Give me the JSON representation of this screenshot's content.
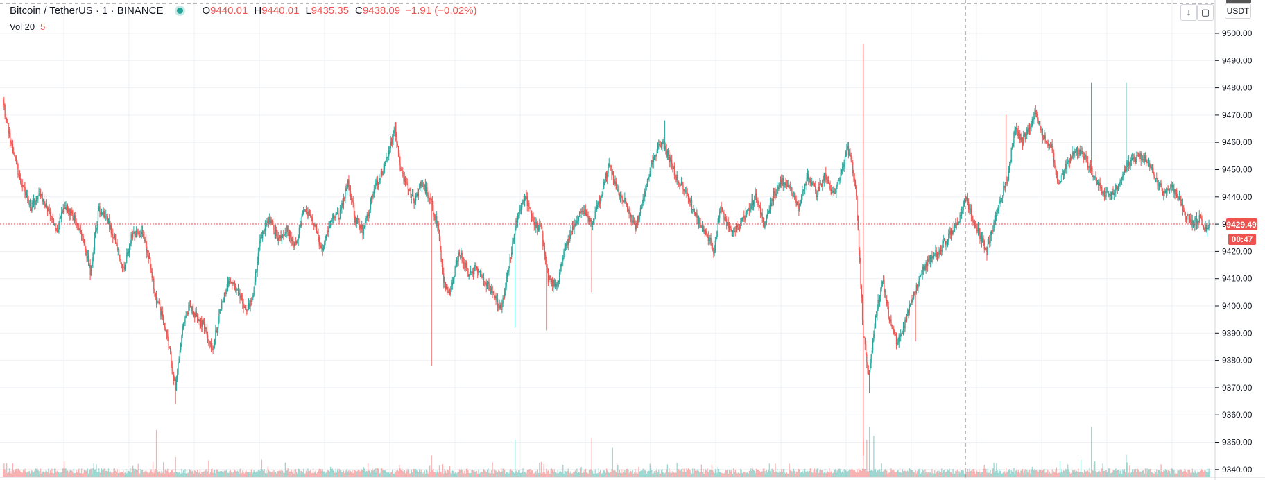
{
  "header": {
    "symbol": "Bitcoin / TetherUS · 1 · BINANCE",
    "open_key": "O",
    "open": "9440.01",
    "high_key": "H",
    "high": "9440.01",
    "low_key": "L",
    "low": "9435.35",
    "close_key": "C",
    "close": "9438.09",
    "change": "−1.91 (−0.02%)"
  },
  "volume_legend": {
    "label": "Vol 20",
    "value": "5"
  },
  "toolbar": {
    "download_icon": "download-arrow-icon",
    "fullscreen_icon": "fullscreen-icon",
    "currency": "USDT"
  },
  "price_tag": {
    "price": "9429.49",
    "countdown": "00:47"
  },
  "colors": {
    "up": "#26a69a",
    "down": "#ef5350",
    "grid": "#eef1f5",
    "axis": "#131722"
  },
  "chart_data": {
    "type": "candlestick",
    "ylim": [
      9336,
      9507
    ],
    "y_ticks": [
      9500,
      9490,
      9480,
      9470,
      9460,
      9450,
      9440,
      9430,
      9420,
      9410,
      9400,
      9390,
      9380,
      9370,
      9360,
      9350,
      9340
    ],
    "y_tick_labels": [
      "9500.00",
      "9490.00",
      "9480.00",
      "9470.00",
      "9460.00",
      "9450.00",
      "9440.00",
      "9430.00",
      "9420.00",
      "9410.00",
      "9400.00",
      "9390.00",
      "9380.00",
      "9370.00",
      "9360.00",
      "9350.00",
      "9340.00"
    ],
    "last_price": 9429.49,
    "grid": true,
    "volume_label": "Vol 20",
    "close_path_anchors": [
      [
        0,
        9474
      ],
      [
        10,
        9458
      ],
      [
        20,
        9446
      ],
      [
        32,
        9436
      ],
      [
        42,
        9442
      ],
      [
        55,
        9432
      ],
      [
        62,
        9428
      ],
      [
        70,
        9437
      ],
      [
        82,
        9432
      ],
      [
        92,
        9425
      ],
      [
        100,
        9412
      ],
      [
        110,
        9436
      ],
      [
        120,
        9431
      ],
      [
        128,
        9425
      ],
      [
        138,
        9413
      ],
      [
        148,
        9426
      ],
      [
        160,
        9427
      ],
      [
        168,
        9417
      ],
      [
        176,
        9402
      ],
      [
        184,
        9395
      ],
      [
        192,
        9382
      ],
      [
        198,
        9370
      ],
      [
        206,
        9392
      ],
      [
        214,
        9400
      ],
      [
        224,
        9395
      ],
      [
        232,
        9392
      ],
      [
        240,
        9383
      ],
      [
        250,
        9400
      ],
      [
        260,
        9410
      ],
      [
        270,
        9405
      ],
      [
        280,
        9398
      ],
      [
        286,
        9403
      ],
      [
        296,
        9425
      ],
      [
        306,
        9432
      ],
      [
        316,
        9424
      ],
      [
        326,
        9428
      ],
      [
        336,
        9422
      ],
      [
        346,
        9436
      ],
      [
        358,
        9430
      ],
      [
        366,
        9420
      ],
      [
        376,
        9432
      ],
      [
        386,
        9433
      ],
      [
        396,
        9446
      ],
      [
        404,
        9432
      ],
      [
        414,
        9427
      ],
      [
        426,
        9443
      ],
      [
        436,
        9450
      ],
      [
        446,
        9460
      ],
      [
        450,
        9466
      ],
      [
        456,
        9450
      ],
      [
        464,
        9444
      ],
      [
        472,
        9438
      ],
      [
        480,
        9445
      ],
      [
        490,
        9440
      ],
      [
        500,
        9428
      ],
      [
        506,
        9408
      ],
      [
        514,
        9405
      ],
      [
        524,
        9420
      ],
      [
        534,
        9412
      ],
      [
        544,
        9414
      ],
      [
        556,
        9408
      ],
      [
        566,
        9403
      ],
      [
        572,
        9398
      ],
      [
        580,
        9413
      ],
      [
        590,
        9432
      ],
      [
        600,
        9440
      ],
      [
        610,
        9430
      ],
      [
        618,
        9428
      ],
      [
        626,
        9410
      ],
      [
        636,
        9407
      ],
      [
        646,
        9422
      ],
      [
        656,
        9430
      ],
      [
        666,
        9435
      ],
      [
        676,
        9430
      ],
      [
        686,
        9440
      ],
      [
        696,
        9452
      ],
      [
        706,
        9442
      ],
      [
        716,
        9437
      ],
      [
        726,
        9428
      ],
      [
        736,
        9440
      ],
      [
        746,
        9454
      ],
      [
        756,
        9460
      ],
      [
        764,
        9455
      ],
      [
        772,
        9448
      ],
      [
        782,
        9443
      ],
      [
        792,
        9436
      ],
      [
        800,
        9430
      ],
      [
        808,
        9427
      ],
      [
        816,
        9420
      ],
      [
        824,
        9436
      ],
      [
        834,
        9428
      ],
      [
        844,
        9429
      ],
      [
        854,
        9434
      ],
      [
        864,
        9440
      ],
      [
        874,
        9430
      ],
      [
        884,
        9440
      ],
      [
        894,
        9446
      ],
      [
        904,
        9443
      ],
      [
        914,
        9436
      ],
      [
        924,
        9448
      ],
      [
        934,
        9441
      ],
      [
        944,
        9448
      ],
      [
        954,
        9440
      ],
      [
        962,
        9448
      ],
      [
        970,
        9458
      ],
      [
        976,
        9450
      ],
      [
        980,
        9440
      ],
      [
        988,
        9390
      ],
      [
        994,
        9375
      ],
      [
        1002,
        9395
      ],
      [
        1010,
        9410
      ],
      [
        1018,
        9395
      ],
      [
        1026,
        9387
      ],
      [
        1034,
        9392
      ],
      [
        1044,
        9402
      ],
      [
        1056,
        9413
      ],
      [
        1066,
        9418
      ],
      [
        1076,
        9420
      ],
      [
        1086,
        9426
      ],
      [
        1096,
        9430
      ],
      [
        1106,
        9440
      ],
      [
        1114,
        9431
      ],
      [
        1122,
        9426
      ],
      [
        1130,
        9420
      ],
      [
        1138,
        9430
      ],
      [
        1146,
        9440
      ],
      [
        1154,
        9447
      ],
      [
        1162,
        9466
      ],
      [
        1170,
        9460
      ],
      [
        1178,
        9465
      ],
      [
        1186,
        9471
      ],
      [
        1194,
        9463
      ],
      [
        1204,
        9458
      ],
      [
        1212,
        9445
      ],
      [
        1222,
        9452
      ],
      [
        1232,
        9458
      ],
      [
        1242,
        9455
      ],
      [
        1252,
        9448
      ],
      [
        1262,
        9442
      ],
      [
        1272,
        9440
      ],
      [
        1282,
        9445
      ],
      [
        1292,
        9452
      ],
      [
        1302,
        9455
      ],
      [
        1312,
        9454
      ],
      [
        1322,
        9448
      ],
      [
        1332,
        9442
      ],
      [
        1342,
        9444
      ],
      [
        1350,
        9440
      ],
      [
        1358,
        9433
      ],
      [
        1366,
        9430
      ],
      [
        1374,
        9432
      ],
      [
        1380,
        9428
      ],
      [
        1386,
        9429
      ]
    ]
  }
}
